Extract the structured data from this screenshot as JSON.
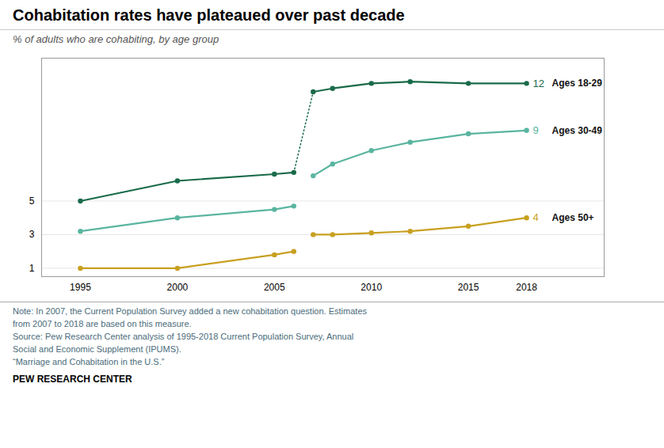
{
  "chart_data": {
    "type": "line",
    "title": "Cohabitation rates have plateaued over past decade",
    "subtitle": "% of adults who are cohabiting, by age group",
    "note": "Note: In 2007, the Current Population Survey added a new cohabitation question. Estimates\nfrom 2007 to 2018 are based on this measure.\nSource: Pew Research Center analysis of 1995-2018 Current Population Survey, Annual\nSocial and Economic Supplement (IPUMS).\n“Marriage and Cohabitation in the U.S.”",
    "footer": "PEW RESEARCH CENTER",
    "marker": "circle",
    "line_style": "solid",
    "grid": true,
    "xlim": [
      1993,
      2022
    ],
    "xticks": [
      1995,
      2000,
      2005,
      2010,
      2015,
      2018
    ],
    "ylim": [
      0.5,
      13.5
    ],
    "yticks": [
      1,
      3,
      5
    ],
    "series": [
      {
        "name": "Ages 18-29",
        "color": "#1a6b4a",
        "end_label": "12",
        "segments": [
          {
            "x": [
              1995,
              2000,
              2005,
              2006
            ],
            "values": [
              5.0,
              6.2,
              6.6,
              6.7
            ]
          },
          {
            "x": [
              2007,
              2008,
              2010,
              2012,
              2015,
              2018
            ],
            "values": [
              11.5,
              11.7,
              12.0,
              12.1,
              12.0,
              12.0
            ]
          }
        ],
        "connector": {
          "x": [
            2006,
            2007
          ],
          "values": [
            6.7,
            11.5
          ],
          "line_style": "dotted",
          "marker": "none"
        }
      },
      {
        "name": "Ages 30-49",
        "color": "#5ab5a0",
        "end_label": "9",
        "segments": [
          {
            "x": [
              1995,
              2000,
              2005,
              2006
            ],
            "values": [
              3.2,
              4.0,
              4.5,
              4.7
            ]
          },
          {
            "x": [
              2007,
              2008,
              2010,
              2012,
              2015,
              2018
            ],
            "values": [
              6.5,
              7.2,
              8.0,
              8.5,
              9.0,
              9.2
            ]
          }
        ]
      },
      {
        "name": "Ages 50+",
        "color": "#c8a020",
        "end_label": "4",
        "segments": [
          {
            "x": [
              1995,
              2000,
              2005,
              2006
            ],
            "values": [
              1.0,
              1.0,
              1.8,
              2.0
            ]
          },
          {
            "x": [
              2007,
              2008,
              2010,
              2012,
              2015,
              2018
            ],
            "values": [
              3.0,
              3.0,
              3.1,
              3.2,
              3.5,
              4.0
            ]
          }
        ]
      }
    ]
  }
}
